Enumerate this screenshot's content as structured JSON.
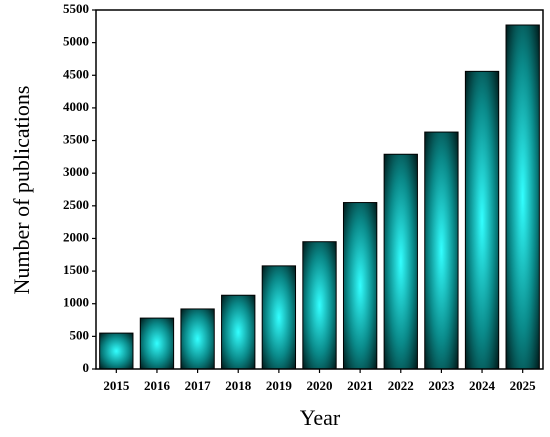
{
  "chart_data": {
    "type": "bar",
    "x_label": "Year",
    "y_label": "Number of publications",
    "categories": [
      "2015",
      "2016",
      "2017",
      "2018",
      "2019",
      "2020",
      "2021",
      "2022",
      "2023",
      "2024",
      "2025"
    ],
    "values": [
      550,
      780,
      920,
      1130,
      1580,
      1950,
      2550,
      3290,
      3630,
      4560,
      5270
    ],
    "color": "#33ffff",
    "ylim": [
      0,
      5500
    ],
    "yticks": [
      0,
      500,
      1000,
      1500,
      2000,
      2500,
      3000,
      3500,
      4000,
      4500,
      5000,
      5500
    ]
  }
}
